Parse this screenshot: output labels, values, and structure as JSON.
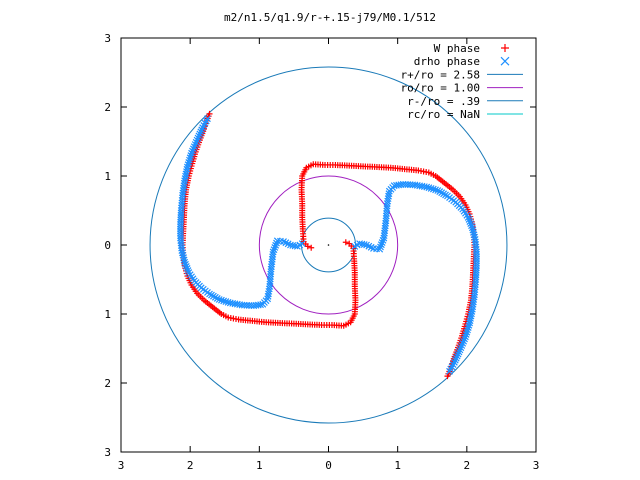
{
  "chart_data": {
    "type": "scatter",
    "title": "m2/n1.5/q1.9/r-+.15-j79/M0.1/512",
    "xlabel": "",
    "ylabel": "",
    "xlim": [
      -3,
      3
    ],
    "ylim": [
      -3,
      3
    ],
    "x_tick_labels": [
      "3",
      "2",
      "1",
      "0",
      "1",
      "2",
      "3"
    ],
    "y_tick_labels": [
      "3",
      "2",
      "1",
      "0",
      "1",
      "2",
      "3"
    ],
    "grid": false,
    "legend_position": "top-right",
    "series": [
      {
        "name": "W phase",
        "marker": "plus",
        "color": "#ff0000",
        "points": [
          [
            -1.72,
            1.9
          ],
          [
            -1.76,
            1.8
          ],
          [
            -1.8,
            1.68
          ],
          [
            -1.86,
            1.52
          ],
          [
            -1.92,
            1.35
          ],
          [
            -1.97,
            1.18
          ],
          [
            -2.02,
            1.0
          ],
          [
            -2.06,
            0.8
          ],
          [
            -2.08,
            0.6
          ],
          [
            -2.09,
            0.4
          ],
          [
            -2.1,
            0.2
          ],
          [
            -2.11,
            0.0
          ],
          [
            -2.1,
            -0.15
          ],
          [
            -2.08,
            -0.3
          ],
          [
            -2.04,
            -0.45
          ],
          [
            -1.98,
            -0.58
          ],
          [
            -1.9,
            -0.7
          ],
          [
            -1.8,
            -0.8
          ],
          [
            -1.7,
            -0.88
          ],
          [
            -1.55,
            -1.0
          ],
          [
            -1.45,
            -1.05
          ],
          [
            -1.3,
            -1.08
          ],
          [
            -1.1,
            -1.1
          ],
          [
            -0.9,
            -1.12
          ],
          [
            -0.7,
            -1.13
          ],
          [
            -0.5,
            -1.14
          ],
          [
            -0.3,
            -1.15
          ],
          [
            -0.1,
            -1.16
          ],
          [
            0.05,
            -1.16
          ],
          [
            0.22,
            -1.17
          ],
          [
            0.32,
            -1.12
          ],
          [
            0.38,
            -1.0
          ],
          [
            0.39,
            -0.8
          ],
          [
            0.38,
            -0.6
          ],
          [
            0.38,
            -0.4
          ],
          [
            0.37,
            -0.2
          ],
          [
            0.36,
            -0.05
          ],
          [
            0.3,
            0.02
          ],
          [
            0.25,
            0.04
          ],
          [
            1.72,
            -1.9
          ],
          [
            1.76,
            -1.8
          ],
          [
            1.8,
            -1.68
          ],
          [
            1.86,
            -1.52
          ],
          [
            1.92,
            -1.35
          ],
          [
            1.97,
            -1.18
          ],
          [
            2.02,
            -1.0
          ],
          [
            2.06,
            -0.8
          ],
          [
            2.08,
            -0.6
          ],
          [
            2.09,
            -0.4
          ],
          [
            2.1,
            -0.2
          ],
          [
            2.11,
            0.0
          ],
          [
            2.1,
            0.15
          ],
          [
            2.08,
            0.3
          ],
          [
            2.04,
            0.45
          ],
          [
            1.98,
            0.58
          ],
          [
            1.9,
            0.7
          ],
          [
            1.8,
            0.8
          ],
          [
            1.7,
            0.88
          ],
          [
            1.55,
            1.0
          ],
          [
            1.45,
            1.05
          ],
          [
            1.3,
            1.08
          ],
          [
            1.1,
            1.1
          ],
          [
            0.9,
            1.12
          ],
          [
            0.7,
            1.13
          ],
          [
            0.5,
            1.14
          ],
          [
            0.3,
            1.15
          ],
          [
            0.1,
            1.16
          ],
          [
            -0.05,
            1.16
          ],
          [
            -0.22,
            1.17
          ],
          [
            -0.32,
            1.12
          ],
          [
            -0.38,
            1.0
          ],
          [
            -0.39,
            0.8
          ],
          [
            -0.38,
            0.6
          ],
          [
            -0.38,
            0.4
          ],
          [
            -0.37,
            0.2
          ],
          [
            -0.36,
            0.05
          ],
          [
            -0.3,
            -0.02
          ],
          [
            -0.25,
            -0.04
          ]
        ]
      },
      {
        "name": "drho phase",
        "marker": "cross",
        "color": "#1e90ff",
        "points": [
          [
            -1.75,
            1.83
          ],
          [
            -1.82,
            1.7
          ],
          [
            -1.9,
            1.52
          ],
          [
            -1.98,
            1.33
          ],
          [
            -2.04,
            1.13
          ],
          [
            -2.08,
            0.93
          ],
          [
            -2.11,
            0.72
          ],
          [
            -2.13,
            0.5
          ],
          [
            -2.14,
            0.3
          ],
          [
            -2.14,
            0.1
          ],
          [
            -2.12,
            -0.08
          ],
          [
            -2.08,
            -0.25
          ],
          [
            -2.02,
            -0.4
          ],
          [
            -1.94,
            -0.52
          ],
          [
            -1.84,
            -0.62
          ],
          [
            -1.72,
            -0.71
          ],
          [
            -1.58,
            -0.79
          ],
          [
            -1.42,
            -0.84
          ],
          [
            -1.25,
            -0.87
          ],
          [
            -1.08,
            -0.88
          ],
          [
            -0.95,
            -0.86
          ],
          [
            -0.88,
            -0.78
          ],
          [
            -0.85,
            -0.6
          ],
          [
            -0.83,
            -0.35
          ],
          [
            -0.8,
            -0.1
          ],
          [
            -0.74,
            0.06
          ],
          [
            -0.65,
            0.05
          ],
          [
            -0.55,
            0.0
          ],
          [
            -0.45,
            -0.02
          ],
          [
            -0.38,
            0.02
          ],
          [
            1.75,
            -1.83
          ],
          [
            1.82,
            -1.7
          ],
          [
            1.9,
            -1.52
          ],
          [
            1.98,
            -1.33
          ],
          [
            2.04,
            -1.13
          ],
          [
            2.08,
            -0.93
          ],
          [
            2.11,
            -0.72
          ],
          [
            2.13,
            -0.5
          ],
          [
            2.14,
            -0.3
          ],
          [
            2.14,
            -0.1
          ],
          [
            2.12,
            0.08
          ],
          [
            2.08,
            0.25
          ],
          [
            2.02,
            0.4
          ],
          [
            1.94,
            0.52
          ],
          [
            1.84,
            0.62
          ],
          [
            1.72,
            0.71
          ],
          [
            1.58,
            0.79
          ],
          [
            1.42,
            0.84
          ],
          [
            1.25,
            0.87
          ],
          [
            1.08,
            0.88
          ],
          [
            0.95,
            0.86
          ],
          [
            0.88,
            0.78
          ],
          [
            0.85,
            0.6
          ],
          [
            0.83,
            0.35
          ],
          [
            0.8,
            0.1
          ],
          [
            0.74,
            -0.06
          ],
          [
            0.65,
            -0.05
          ],
          [
            0.55,
            0.0
          ],
          [
            0.45,
            0.02
          ],
          [
            0.38,
            -0.02
          ]
        ]
      },
      {
        "name": "r+/ro = 2.58",
        "type": "circle",
        "radius": 2.58,
        "color": "#1a7ab8"
      },
      {
        "name": "ro/ro = 1.00",
        "type": "circle",
        "radius": 1.0,
        "color": "#a020c0"
      },
      {
        "name": "r-/ro = .39",
        "type": "circle",
        "radius": 0.39,
        "color": "#1a7ab8"
      },
      {
        "name": "rc/ro = NaN",
        "type": "circle",
        "radius": null,
        "color": "#00c8c8"
      }
    ]
  }
}
